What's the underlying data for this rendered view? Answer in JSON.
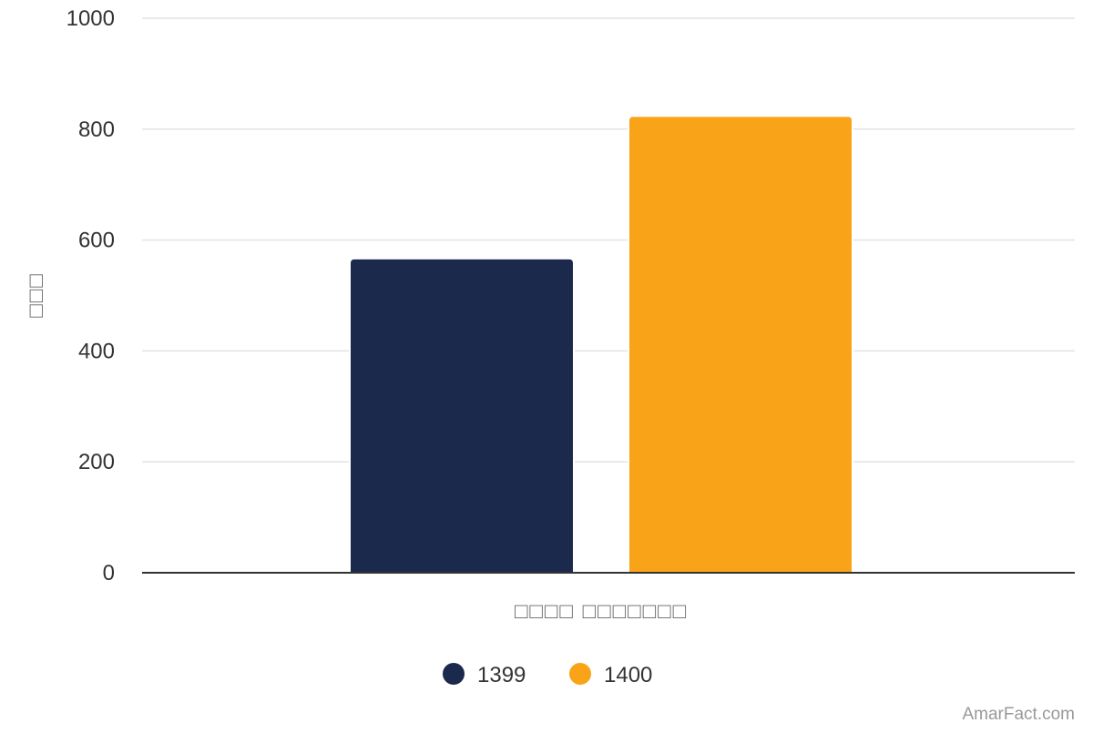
{
  "chart_data": {
    "type": "bar",
    "title": "",
    "xlabel": "□□□□ □□□□□□□",
    "ylabel": "□□□",
    "categories": [
      "□□□□ □□□□□□□"
    ],
    "series": [
      {
        "name": "1399",
        "values": [
          565
        ],
        "color": "#1b2a4c"
      },
      {
        "name": "1400",
        "values": [
          822
        ],
        "color": "#f9a318"
      }
    ],
    "ylim": [
      0,
      1000
    ],
    "yticks": [
      0,
      200,
      400,
      600,
      800,
      1000
    ],
    "grid": true,
    "legend_position": "bottom-center"
  },
  "watermark": "AmarFact.com"
}
